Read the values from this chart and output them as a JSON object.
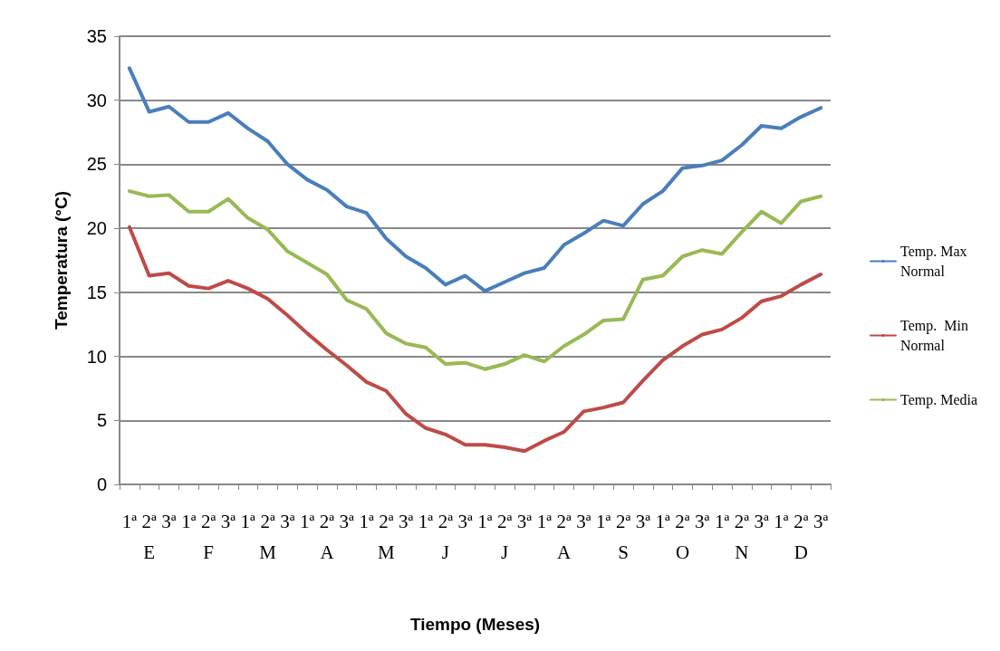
{
  "chart_data": {
    "type": "line",
    "xlabel": "Tiempo (Meses)",
    "ylabel": "Temperatura (°C)",
    "categories": [
      "1ª",
      "2ª\nE",
      "3ª",
      "1ª",
      "2ª\nF",
      "3ª",
      "1ª",
      "2ª\nM",
      "3ª",
      "1ª",
      "2ª\nA",
      "3ª",
      "1ª",
      "2ª\nM",
      "3ª",
      "1ª",
      "2ª\nJ",
      "3ª",
      "1ª",
      "2ª\nJ",
      "3ª",
      "1ª",
      "2ª\nA",
      "3ª",
      "1ª",
      "2ª\nS",
      "3ª",
      "1ª",
      "2ª\nO",
      "3ª",
      "1ª",
      "2ª\nN",
      "3ª",
      "1ª",
      "2ª\nD",
      "3ª"
    ],
    "series": [
      {
        "name": "Temp. Max Normal",
        "color": "#4a7ebb",
        "values": [
          32.5,
          29.1,
          29.5,
          28.3,
          28.3,
          29.0,
          27.8,
          26.8,
          25.0,
          23.8,
          23.0,
          21.7,
          21.2,
          19.2,
          17.8,
          16.9,
          15.6,
          16.3,
          15.1,
          15.8,
          16.5,
          16.9,
          18.7,
          19.6,
          20.6,
          20.2,
          21.9,
          22.9,
          24.7,
          24.9,
          25.3,
          26.5,
          28.0,
          27.8,
          28.7,
          29.4
        ]
      },
      {
        "name": "Temp.  Min Normal",
        "color": "#be4b48",
        "values": [
          20.1,
          16.3,
          16.5,
          15.5,
          15.3,
          15.9,
          15.3,
          14.5,
          13.2,
          11.8,
          10.5,
          9.3,
          8.0,
          7.3,
          5.5,
          4.4,
          3.9,
          3.1,
          3.1,
          2.9,
          2.6,
          3.4,
          4.1,
          5.7,
          6.0,
          6.4,
          8.1,
          9.7,
          10.8,
          11.7,
          12.1,
          13.0,
          14.3,
          14.7,
          15.6,
          16.4
        ]
      },
      {
        "name": "Temp. Media",
        "color": "#98b954",
        "values": [
          22.9,
          22.5,
          22.6,
          21.3,
          21.3,
          22.3,
          20.8,
          19.9,
          18.2,
          17.3,
          16.4,
          14.4,
          13.7,
          11.8,
          11.0,
          10.7,
          9.4,
          9.5,
          9.0,
          9.4,
          10.1,
          9.6,
          10.8,
          11.7,
          12.8,
          12.9,
          16.0,
          16.3,
          17.8,
          18.3,
          18.0,
          19.7,
          21.3,
          20.4,
          22.1,
          22.5
        ]
      }
    ],
    "ylim": [
      0,
      35
    ],
    "yticks": [
      0,
      5,
      10,
      15,
      20,
      25,
      30,
      35
    ],
    "grid": "y",
    "legend": "right",
    "marker": "none",
    "line_style": "solid"
  }
}
